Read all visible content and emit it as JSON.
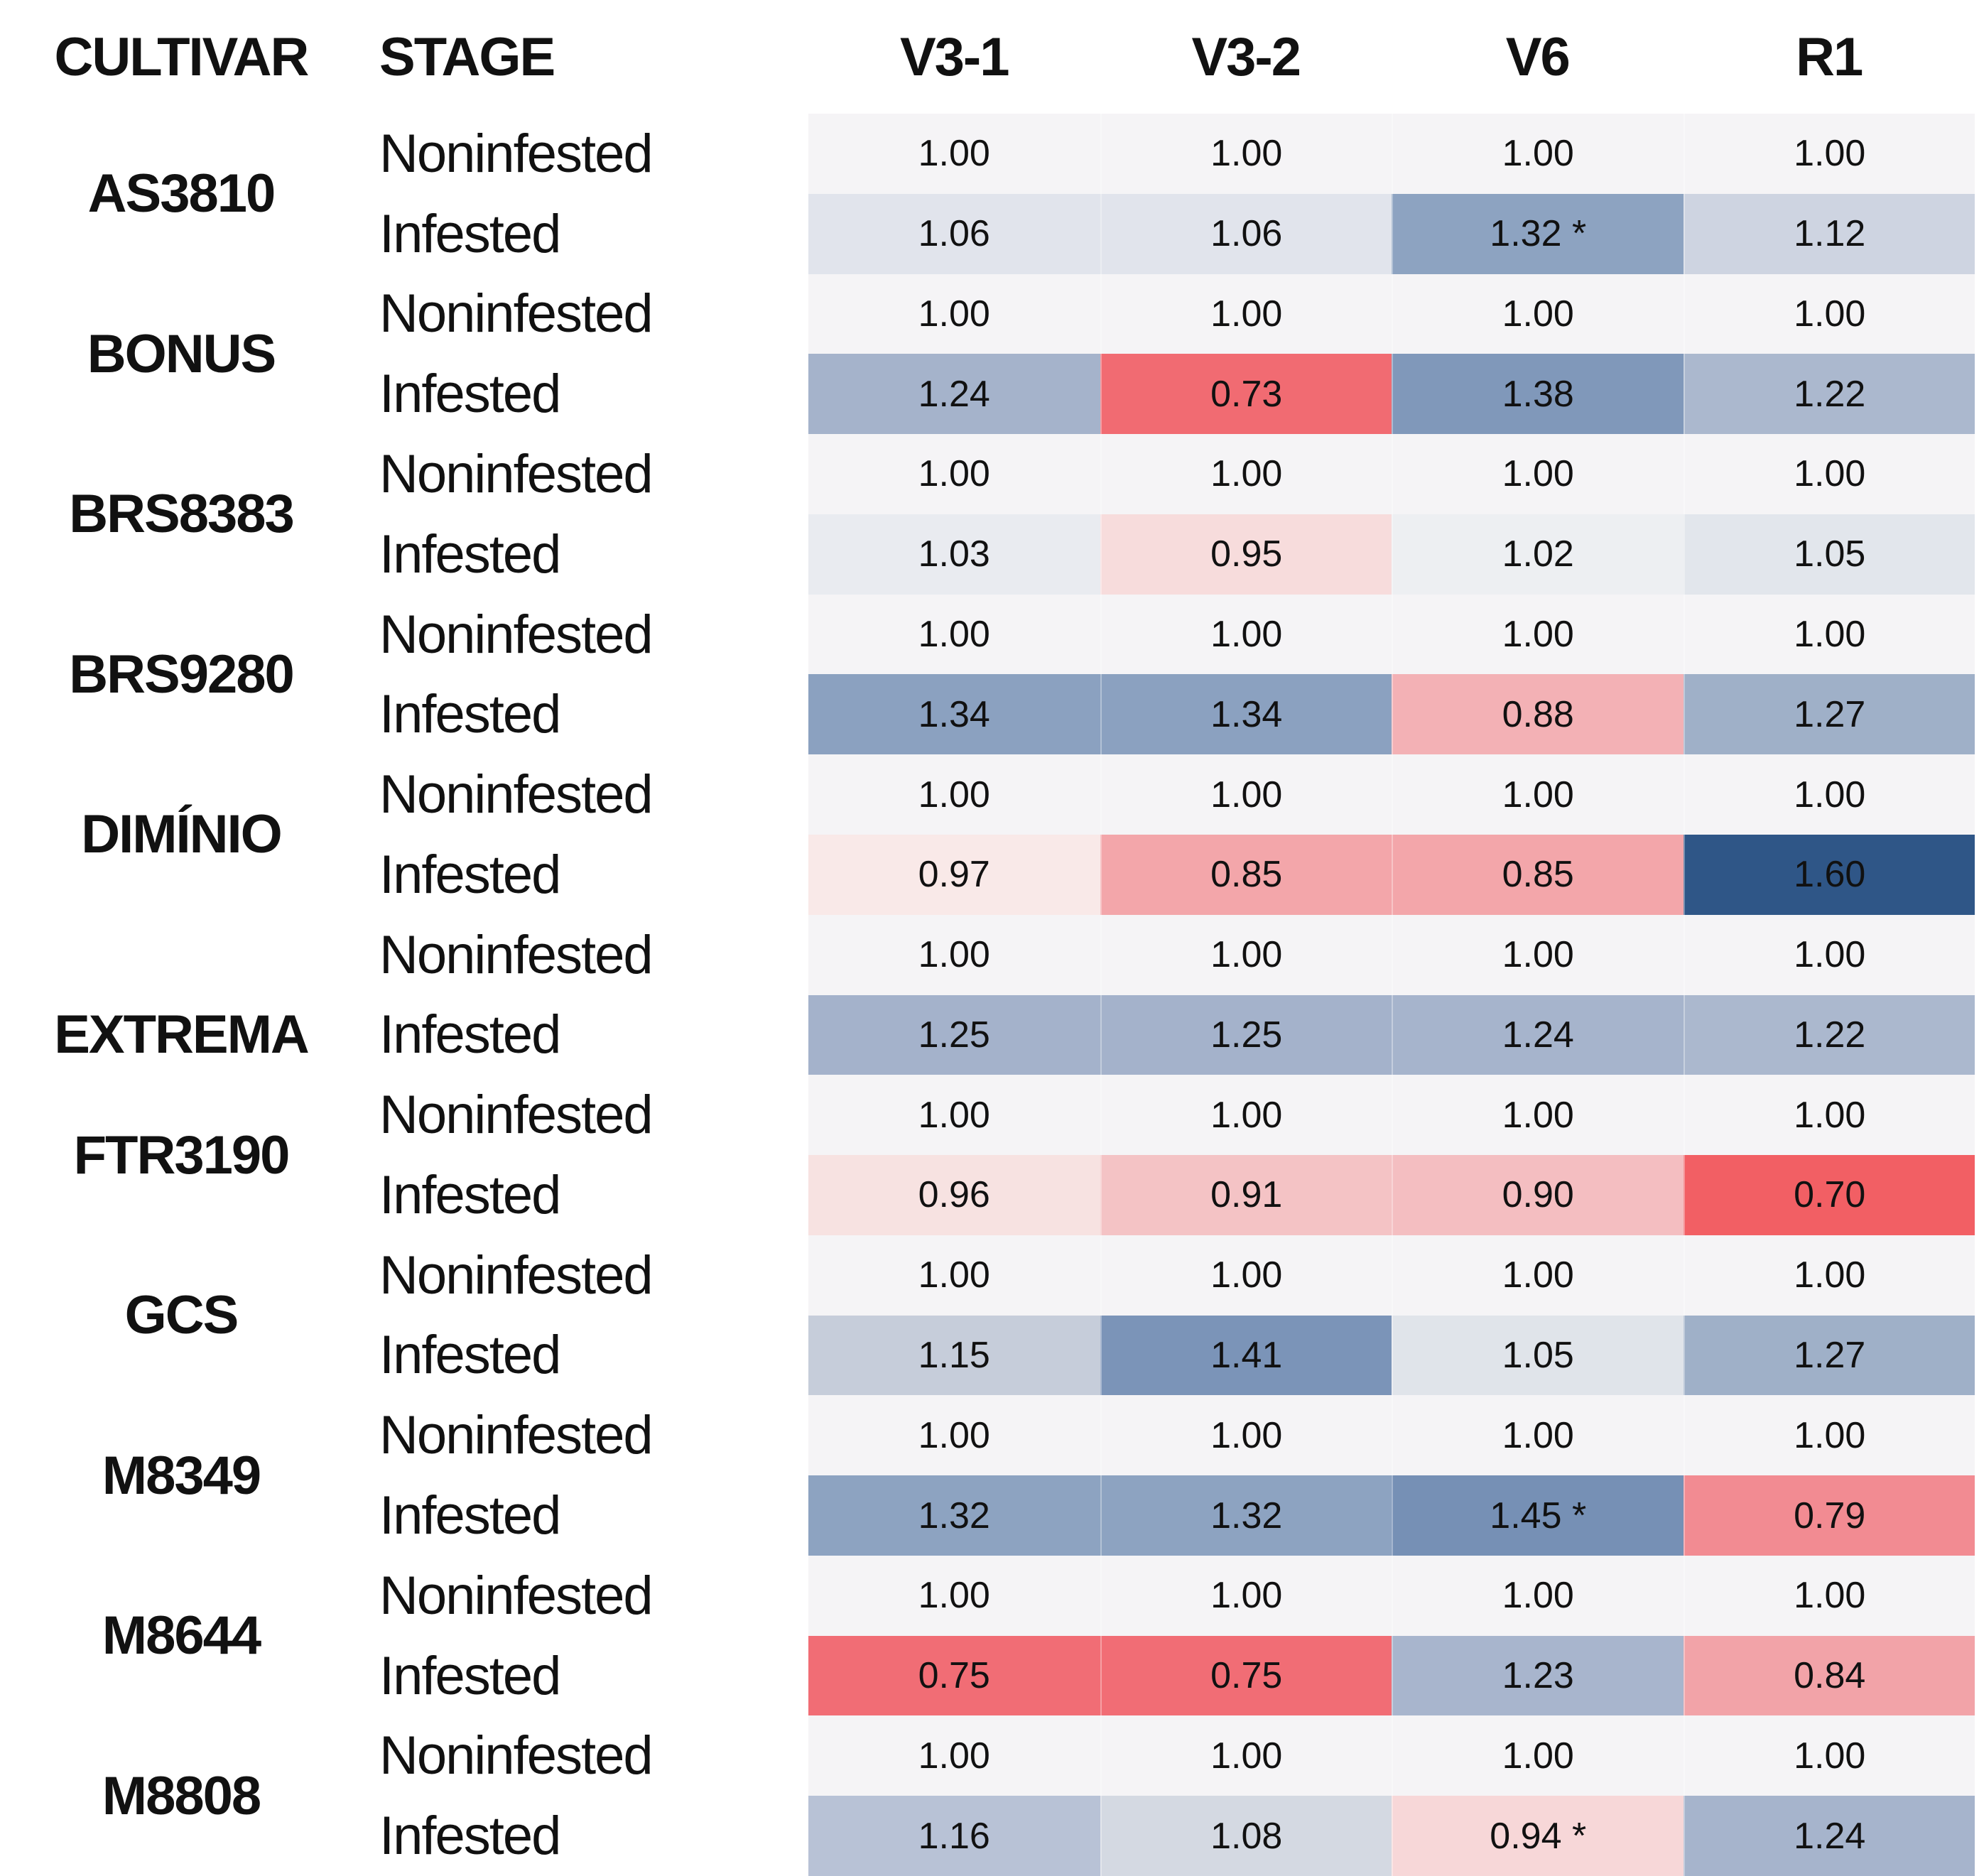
{
  "header": {
    "cultivar": "CULTIVAR",
    "stage": "STAGE"
  },
  "colors": {
    "page_bg": "#ffffff",
    "text": "#111111",
    "noninfested_bg": "#f5f4f6",
    "scale_low_red": "#f25f64",
    "scale_mid": "#f5f4f6",
    "scale_high_blue": "#2f5687"
  },
  "chart_data": {
    "type": "heatmap",
    "title": "",
    "columns": [
      "V3-1",
      "V3-2",
      "V6",
      "R1"
    ],
    "row_label_columns": [
      "CULTIVAR",
      "STAGE"
    ],
    "cultivars": [
      {
        "name": "AS3810",
        "noninfested": {
          "stage": "Noninfested",
          "values": [
            "1.00",
            "1.00",
            "1.00",
            "1.00"
          ]
        },
        "infested": {
          "stage": "Infested",
          "values": [
            "1.06",
            "1.06",
            "1.32 *",
            "1.12"
          ],
          "colors": [
            "#e1e4ec",
            "#e1e4ec",
            "#8da3c1",
            "#ced4e1"
          ]
        }
      },
      {
        "name": "BONUS",
        "noninfested": {
          "stage": "Noninfested",
          "values": [
            "1.00",
            "1.00",
            "1.00",
            "1.00"
          ]
        },
        "infested": {
          "stage": "Infested",
          "values": [
            "1.24",
            "0.73",
            "1.38",
            "1.22"
          ],
          "colors": [
            "#a5b3cb",
            "#f16b72",
            "#8098ba",
            "#abb8ce"
          ]
        }
      },
      {
        "name": "BRS8383",
        "noninfested": {
          "stage": "Noninfested",
          "values": [
            "1.00",
            "1.00",
            "1.00",
            "1.00"
          ]
        },
        "infested": {
          "stage": "Infested",
          "values": [
            "1.03",
            "0.95",
            "1.02",
            "1.05"
          ],
          "colors": [
            "#e9ebf0",
            "#f7dcdc",
            "#edeff2",
            "#e2e6ec"
          ]
        }
      },
      {
        "name": "BRS9280",
        "noninfested": {
          "stage": "Noninfested",
          "values": [
            "1.00",
            "1.00",
            "1.00",
            "1.00"
          ]
        },
        "infested": {
          "stage": "Infested",
          "values": [
            "1.34",
            "1.34",
            "0.88",
            "1.27"
          ],
          "colors": [
            "#8ba1c0",
            "#8ba1c0",
            "#f3b1b5",
            "#9fb0c8"
          ]
        }
      },
      {
        "name": "DIMÍNIO",
        "noninfested": {
          "stage": "Noninfested",
          "values": [
            "1.00",
            "1.00",
            "1.00",
            "1.00"
          ]
        },
        "infested": {
          "stage": "Infested",
          "values": [
            "0.97",
            "0.85",
            "0.85",
            "1.60"
          ],
          "colors": [
            "#f9e9e8",
            "#f3a6aa",
            "#f3a6aa",
            "#2f5687"
          ]
        }
      },
      {
        "name": "EXTREMA",
        "label_align": "infested",
        "noninfested": {
          "stage": "Noninfested",
          "values": [
            "1.00",
            "1.00",
            "1.00",
            "1.00"
          ]
        },
        "infested": {
          "stage": "Infested",
          "values": [
            "1.25",
            "1.25",
            "1.24",
            "1.22"
          ],
          "colors": [
            "#a4b2cb",
            "#a4b2cb",
            "#a6b4cc",
            "#abb8ce"
          ]
        }
      },
      {
        "name": "FTR3190",
        "noninfested": {
          "stage": "Noninfested",
          "values": [
            "1.00",
            "1.00",
            "1.00",
            "1.00"
          ]
        },
        "infested": {
          "stage": "Infested",
          "values": [
            "0.96",
            "0.91",
            "0.90",
            "0.70"
          ],
          "colors": [
            "#f7e2e1",
            "#f4c3c5",
            "#f4bec1",
            "#f25f64"
          ]
        }
      },
      {
        "name": "GCS",
        "noninfested": {
          "stage": "Noninfested",
          "values": [
            "1.00",
            "1.00",
            "1.00",
            "1.00"
          ]
        },
        "infested": {
          "stage": "Infested",
          "values": [
            "1.15",
            "1.41",
            "1.05",
            "1.27"
          ],
          "colors": [
            "#c6cdda",
            "#7b94b8",
            "#e0e4ea",
            "#9fb0c8"
          ]
        }
      },
      {
        "name": "M8349",
        "noninfested": {
          "stage": "Noninfested",
          "values": [
            "1.00",
            "1.00",
            "1.00",
            "1.00"
          ]
        },
        "infested": {
          "stage": "Infested",
          "values": [
            "1.32",
            "1.32",
            "1.45 *",
            "0.79"
          ],
          "colors": [
            "#8da3c1",
            "#8da3c1",
            "#7690b5",
            "#f28b92"
          ]
        }
      },
      {
        "name": "M8644",
        "noninfested": {
          "stage": "Noninfested",
          "values": [
            "1.00",
            "1.00",
            "1.00",
            "1.00"
          ]
        },
        "infested": {
          "stage": "Infested",
          "values": [
            "0.75",
            "0.75",
            "1.23",
            "0.84"
          ],
          "colors": [
            "#f16d75",
            "#f16d75",
            "#a8b5cd",
            "#f2a3a8"
          ]
        }
      },
      {
        "name": "M8808",
        "noninfested": {
          "stage": "Noninfested",
          "values": [
            "1.00",
            "1.00",
            "1.00",
            "1.00"
          ]
        },
        "infested": {
          "stage": "Infested",
          "values": [
            "1.16",
            "1.08",
            "0.94 *",
            "1.24"
          ],
          "colors": [
            "#b8c2d6",
            "#d4d9e2",
            "#f7d7d8",
            "#a6b4cc"
          ]
        }
      }
    ]
  }
}
